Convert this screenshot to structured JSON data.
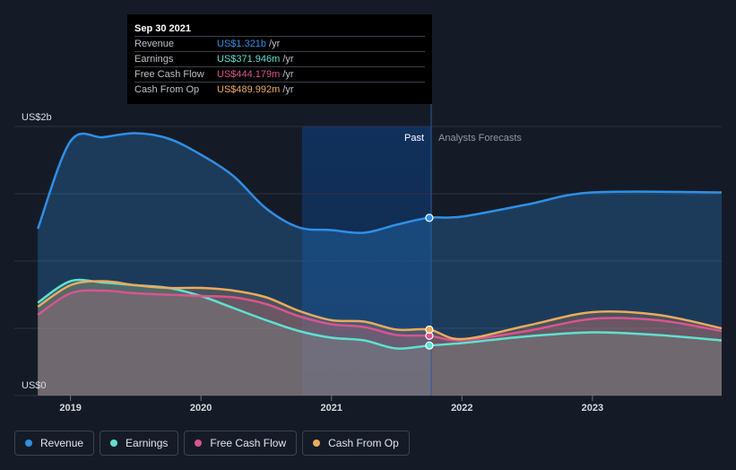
{
  "tooltip": {
    "date": "Sep 30 2021",
    "rows": [
      {
        "label": "Revenue",
        "value": "US$1.321b",
        "unit": "/yr",
        "color": "#2f8fe6"
      },
      {
        "label": "Earnings",
        "value": "US$371.946m",
        "unit": "/yr",
        "color": "#5fe1cf"
      },
      {
        "label": "Free Cash Flow",
        "value": "US$444.179m",
        "unit": "/yr",
        "color": "#d9548f"
      },
      {
        "label": "Cash From Op",
        "value": "US$489.992m",
        "unit": "/yr",
        "color": "#ecaa5d"
      }
    ]
  },
  "labels": {
    "past": "Past",
    "forecast": "Analysts Forecasts"
  },
  "legend": [
    {
      "label": "Revenue",
      "color": "#2f8fe6"
    },
    {
      "label": "Earnings",
      "color": "#5fe1cf"
    },
    {
      "label": "Free Cash Flow",
      "color": "#d9548f"
    },
    {
      "label": "Cash From Op",
      "color": "#ecaa5d"
    }
  ],
  "chart_data": {
    "type": "area",
    "y_unit": "US$ billions",
    "ylim": [
      0,
      2
    ],
    "y_tick_labels": [
      {
        "value": 2,
        "label": "US$2b"
      },
      {
        "value": 0,
        "label": "US$0"
      }
    ],
    "x_range": [
      2018.57,
      2023.99
    ],
    "x_ticks": [
      {
        "value": 2019,
        "label": "2019"
      },
      {
        "value": 2020,
        "label": "2020"
      },
      {
        "value": 2021,
        "label": "2021"
      },
      {
        "value": 2022,
        "label": "2022"
      },
      {
        "value": 2023,
        "label": "2023"
      }
    ],
    "divider_x": 2021.75,
    "forecast_band_start": 2020.75,
    "grid": true,
    "series": [
      {
        "name": "Revenue",
        "color": "#2f8fe6",
        "marker": {
          "x": 2021.75,
          "y": 1.321
        },
        "points": [
          [
            2018.75,
            1.24
          ],
          [
            2019.0,
            1.89
          ],
          [
            2019.25,
            1.92
          ],
          [
            2019.5,
            1.95
          ],
          [
            2019.75,
            1.91
          ],
          [
            2020.0,
            1.79
          ],
          [
            2020.25,
            1.63
          ],
          [
            2020.5,
            1.39
          ],
          [
            2020.75,
            1.25
          ],
          [
            2021.0,
            1.23
          ],
          [
            2021.25,
            1.21
          ],
          [
            2021.5,
            1.27
          ],
          [
            2021.75,
            1.321
          ],
          [
            2022.0,
            1.33
          ],
          [
            2022.5,
            1.42
          ],
          [
            2023.0,
            1.51
          ],
          [
            2023.99,
            1.51
          ]
        ]
      },
      {
        "name": "Earnings",
        "color": "#5fe1cf",
        "marker": {
          "x": 2021.75,
          "y": 0.372
        },
        "points": [
          [
            2018.75,
            0.69
          ],
          [
            2019.0,
            0.85
          ],
          [
            2019.25,
            0.84
          ],
          [
            2019.5,
            0.82
          ],
          [
            2019.75,
            0.8
          ],
          [
            2020.0,
            0.74
          ],
          [
            2020.25,
            0.65
          ],
          [
            2020.5,
            0.56
          ],
          [
            2020.75,
            0.48
          ],
          [
            2021.0,
            0.43
          ],
          [
            2021.25,
            0.41
          ],
          [
            2021.5,
            0.35
          ],
          [
            2021.75,
            0.372
          ],
          [
            2022.0,
            0.39
          ],
          [
            2022.5,
            0.44
          ],
          [
            2023.0,
            0.47
          ],
          [
            2023.5,
            0.45
          ],
          [
            2023.99,
            0.41
          ]
        ]
      },
      {
        "name": "Free Cash Flow",
        "color": "#d9548f",
        "marker": {
          "x": 2021.75,
          "y": 0.444
        },
        "points": [
          [
            2018.75,
            0.6
          ],
          [
            2019.0,
            0.76
          ],
          [
            2019.25,
            0.78
          ],
          [
            2019.5,
            0.76
          ],
          [
            2019.75,
            0.75
          ],
          [
            2020.0,
            0.74
          ],
          [
            2020.25,
            0.73
          ],
          [
            2020.5,
            0.68
          ],
          [
            2020.75,
            0.59
          ],
          [
            2021.0,
            0.53
          ],
          [
            2021.25,
            0.51
          ],
          [
            2021.5,
            0.45
          ],
          [
            2021.75,
            0.444
          ],
          [
            2022.0,
            0.41
          ],
          [
            2022.5,
            0.48
          ],
          [
            2023.0,
            0.57
          ],
          [
            2023.5,
            0.56
          ],
          [
            2023.99,
            0.48
          ]
        ]
      },
      {
        "name": "Cash From Op",
        "color": "#ecaa5d",
        "marker": {
          "x": 2021.75,
          "y": 0.49
        },
        "points": [
          [
            2018.75,
            0.66
          ],
          [
            2019.0,
            0.82
          ],
          [
            2019.25,
            0.85
          ],
          [
            2019.5,
            0.82
          ],
          [
            2019.75,
            0.8
          ],
          [
            2020.0,
            0.8
          ],
          [
            2020.25,
            0.78
          ],
          [
            2020.5,
            0.73
          ],
          [
            2020.75,
            0.63
          ],
          [
            2021.0,
            0.56
          ],
          [
            2021.25,
            0.55
          ],
          [
            2021.5,
            0.49
          ],
          [
            2021.75,
            0.49
          ],
          [
            2022.0,
            0.42
          ],
          [
            2022.5,
            0.52
          ],
          [
            2023.0,
            0.62
          ],
          [
            2023.5,
            0.6
          ],
          [
            2023.99,
            0.5
          ]
        ]
      }
    ]
  }
}
